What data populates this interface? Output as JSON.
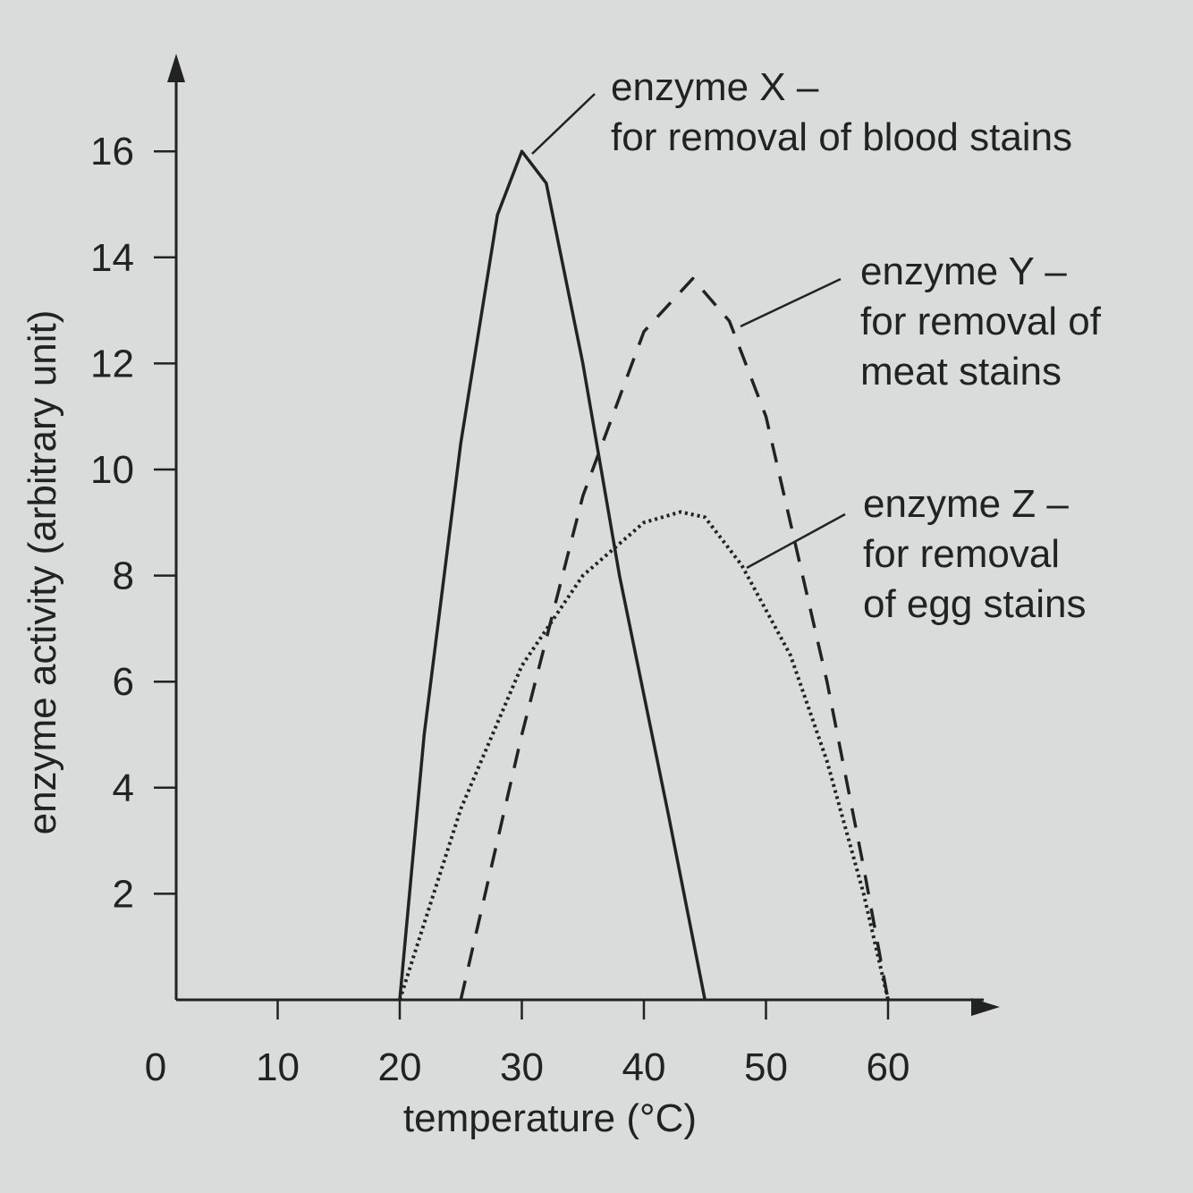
{
  "chart_data": {
    "type": "line",
    "xlabel": "temperature (°C)",
    "ylabel": "enzyme activity (arbitrary unit)",
    "xlim": [
      0,
      68
    ],
    "ylim": [
      0,
      18
    ],
    "xticks": [
      0,
      10,
      20,
      30,
      40,
      50,
      60
    ],
    "yticks": [
      2,
      4,
      6,
      8,
      10,
      12,
      14,
      16
    ],
    "grid": false,
    "series": [
      {
        "color": "#222222",
        "style": "solid",
        "x": [
          20,
          22,
          25,
          28,
          30,
          32,
          35,
          38,
          42,
          45
        ],
        "values": [
          0,
          5,
          10.5,
          14.8,
          16,
          15.4,
          12,
          8,
          3.5,
          0
        ]
      },
      {
        "color": "#222222",
        "style": "dashed",
        "x": [
          25,
          30,
          35,
          40,
          44,
          47,
          50,
          55,
          58,
          60
        ],
        "values": [
          0,
          5,
          9.5,
          12.6,
          13.6,
          12.8,
          11,
          6,
          2.5,
          0
        ]
      },
      {
        "color": "#222222",
        "style": "dotted",
        "x": [
          20,
          25,
          30,
          35,
          40,
          43,
          45,
          48,
          52,
          55,
          58,
          60
        ],
        "values": [
          0,
          3.6,
          6.3,
          8,
          9,
          9.2,
          9.1,
          8.2,
          6.5,
          4.5,
          2,
          0
        ]
      }
    ],
    "annotations": [
      {
        "lines": [
          "enzyme X –",
          "for removal of blood stains"
        ]
      },
      {
        "lines": [
          "enzyme Y –",
          "for removal of",
          "meat stains"
        ]
      },
      {
        "lines": [
          "enzyme Z –",
          "for removal",
          "of egg stains"
        ]
      }
    ]
  }
}
